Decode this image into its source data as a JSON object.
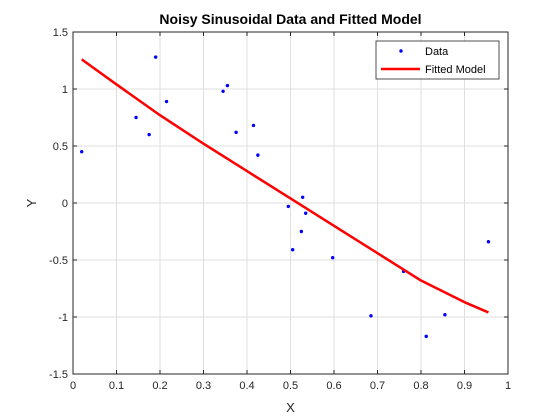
{
  "chart_data": {
    "type": "scatter",
    "title": "Noisy Sinusoidal Data and Fitted Model",
    "xlabel": "X",
    "ylabel": "Y",
    "xlim": [
      0,
      1
    ],
    "ylim": [
      -1.5,
      1.5
    ],
    "xticks": [
      0,
      0.1,
      0.2,
      0.3,
      0.4,
      0.5,
      0.6,
      0.7,
      0.8,
      0.9,
      1
    ],
    "xtick_labels": [
      "0",
      "0.1",
      "0.2",
      "0.3",
      "0.4",
      "0.5",
      "0.6",
      "0.7",
      "0.8",
      "0.9",
      "1"
    ],
    "yticks": [
      -1.5,
      -1,
      -0.5,
      0,
      0.5,
      1,
      1.5
    ],
    "ytick_labels": [
      "-1.5",
      "-1",
      "-0.5",
      "0",
      "0.5",
      "1",
      "1.5"
    ],
    "grid": true,
    "legend_position": "top-right",
    "series": [
      {
        "name": "Data",
        "kind": "scatter",
        "color": "#0000ff",
        "points": [
          [
            0.02,
            0.45
          ],
          [
            0.145,
            0.75
          ],
          [
            0.175,
            0.6
          ],
          [
            0.19,
            1.28
          ],
          [
            0.215,
            0.89
          ],
          [
            0.345,
            0.98
          ],
          [
            0.355,
            1.03
          ],
          [
            0.375,
            0.62
          ],
          [
            0.415,
            0.68
          ],
          [
            0.425,
            0.42
          ],
          [
            0.495,
            -0.03
          ],
          [
            0.505,
            -0.41
          ],
          [
            0.525,
            -0.25
          ],
          [
            0.528,
            0.05
          ],
          [
            0.535,
            -0.09
          ],
          [
            0.597,
            -0.48
          ],
          [
            0.685,
            -0.99
          ],
          [
            0.76,
            -0.6
          ],
          [
            0.812,
            -1.17
          ],
          [
            0.855,
            -0.98
          ],
          [
            0.955,
            -0.34
          ]
        ]
      },
      {
        "name": "Fitted Model",
        "kind": "line",
        "color": "#ff0000",
        "points": [
          [
            0.02,
            1.26
          ],
          [
            0.1,
            1.04
          ],
          [
            0.2,
            0.77
          ],
          [
            0.3,
            0.52
          ],
          [
            0.4,
            0.28
          ],
          [
            0.5,
            0.04
          ],
          [
            0.6,
            -0.2
          ],
          [
            0.7,
            -0.44
          ],
          [
            0.8,
            -0.68
          ],
          [
            0.9,
            -0.87
          ],
          [
            0.955,
            -0.96
          ]
        ]
      }
    ]
  }
}
